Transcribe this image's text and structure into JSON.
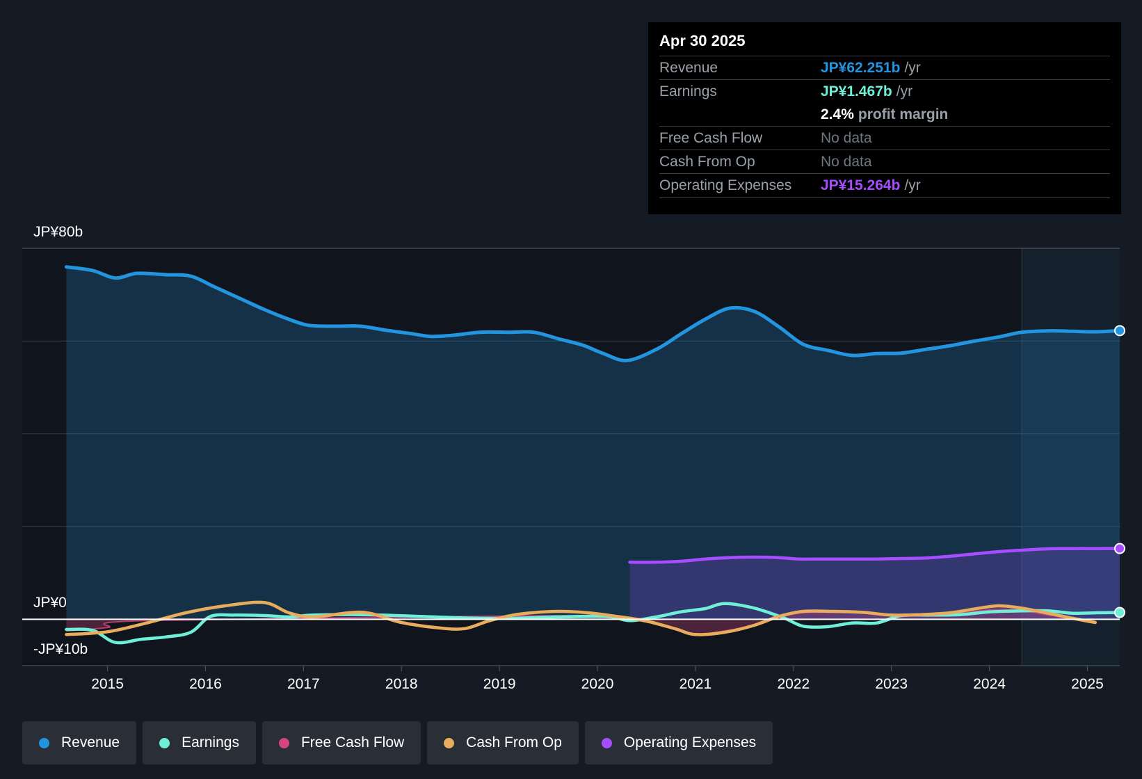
{
  "tooltip": {
    "date": "Apr 30 2025",
    "rows": {
      "revenue": {
        "label": "Revenue",
        "value": "JP¥62.251b",
        "unit": "/yr",
        "color": "#2394df"
      },
      "earnings": {
        "label": "Earnings",
        "value": "JP¥1.467b",
        "unit": "/yr",
        "color": "#6ef0d8"
      },
      "margin": {
        "value": "2.4%",
        "unit": "profit margin"
      },
      "fcf": {
        "label": "Free Cash Flow",
        "value": "No data"
      },
      "cfo": {
        "label": "Cash From Op",
        "value": "No data"
      },
      "opex": {
        "label": "Operating Expenses",
        "value": "JP¥15.264b",
        "unit": "/yr",
        "color": "#a64dff"
      }
    }
  },
  "legend": [
    {
      "label": "Revenue",
      "color": "#2394df"
    },
    {
      "label": "Earnings",
      "color": "#6ef0d8"
    },
    {
      "label": "Free Cash Flow",
      "color": "#d4447f"
    },
    {
      "label": "Cash From Op",
      "color": "#e9ac5c"
    },
    {
      "label": "Operating Expenses",
      "color": "#a64dff"
    }
  ],
  "chart_data": {
    "type": "area",
    "y_top_label": "JP¥80b",
    "y_zero_label": "JP¥0",
    "y_bottom_label": "-JP¥10b",
    "ylim": [
      -10,
      80
    ],
    "xlim": [
      2014.13,
      2025.33
    ],
    "x_ticks": [
      {
        "label": "2015",
        "value": 2015
      },
      {
        "label": "2016",
        "value": 2016
      },
      {
        "label": "2017",
        "value": 2017
      },
      {
        "label": "2018",
        "value": 2018
      },
      {
        "label": "2019",
        "value": 2019
      },
      {
        "label": "2020",
        "value": 2020
      },
      {
        "label": "2021",
        "value": 2021
      },
      {
        "label": "2022",
        "value": 2022
      },
      {
        "label": "2023",
        "value": 2023
      },
      {
        "label": "2024",
        "value": 2024
      },
      {
        "label": "2025",
        "value": 2025
      }
    ],
    "highlight_start": 2024.33,
    "series": [
      {
        "name": "Revenue",
        "color": "#2394df",
        "area": true,
        "x": [
          2014.58,
          2014.85,
          2015.08,
          2015.3,
          2015.6,
          2015.85,
          2016.1,
          2016.35,
          2016.6,
          2016.85,
          2017.05,
          2017.3,
          2017.58,
          2017.85,
          2018.1,
          2018.3,
          2018.55,
          2018.8,
          2019.1,
          2019.35,
          2019.6,
          2019.85,
          2020.05,
          2020.3,
          2020.6,
          2020.85,
          2021.1,
          2021.35,
          2021.6,
          2021.85,
          2022.1,
          2022.35,
          2022.6,
          2022.85,
          2023.1,
          2023.35,
          2023.6,
          2023.85,
          2024.1,
          2024.33,
          2024.6,
          2024.85,
          2025.1,
          2025.33
        ],
        "y": [
          76,
          75.2,
          73.6,
          74.6,
          74.3,
          74,
          71.6,
          69.2,
          66.8,
          64.7,
          63.4,
          63.2,
          63.2,
          62.3,
          61.6,
          61,
          61.3,
          61.9,
          61.9,
          61.9,
          60.5,
          59.1,
          57.4,
          55.8,
          58.2,
          61.5,
          64.7,
          67.1,
          66.4,
          63.1,
          59.3,
          58,
          56.9,
          57.3,
          57.4,
          58.2,
          59,
          60,
          60.9,
          61.9,
          62.2,
          62.1,
          62,
          62.25
        ]
      },
      {
        "name": "Operating Expenses",
        "color": "#a64dff",
        "area": true,
        "x": [
          2020.33,
          2020.6,
          2020.85,
          2021.1,
          2021.35,
          2021.6,
          2021.85,
          2022.05,
          2022.35,
          2022.6,
          2022.85,
          2023.1,
          2023.35,
          2023.6,
          2023.85,
          2024.1,
          2024.33,
          2024.6,
          2024.85,
          2025.1,
          2025.33
        ],
        "y": [
          12.3,
          12.3,
          12.5,
          13,
          13.3,
          13.4,
          13.3,
          13,
          13,
          13,
          13,
          13.1,
          13.2,
          13.6,
          14.1,
          14.6,
          14.9,
          15.2,
          15.25,
          15.25,
          15.26
        ]
      },
      {
        "name": "Free Cash Flow",
        "color": "#d4447f",
        "area": true,
        "x": [
          2014.58,
          2015.0,
          2015.4,
          2019.6,
          2019.9,
          2020.2,
          2020.5,
          2020.8,
          2021.0,
          2021.3,
          2021.6,
          2021.85,
          2022.1,
          2022.4,
          2022.7,
          2023.0,
          2023.3,
          2023.6,
          2023.9,
          2024.1,
          2024.33,
          2024.6,
          2024.85,
          2025.08
        ],
        "y": [
          -2.5,
          -1.8,
          -0.3,
          0.8,
          0.6,
          0.2,
          -0.6,
          -2.2,
          -3.3,
          -2.5,
          -1.2,
          0.6,
          1.4,
          1.5,
          1.4,
          1.0,
          0.9,
          1.1,
          1.8,
          2.2,
          1.9,
          0.9,
          0.1,
          -0.6
        ]
      },
      {
        "name": "Earnings",
        "color": "#6ef0d8",
        "area": false,
        "x": [
          2014.58,
          2014.85,
          2015.08,
          2015.35,
          2015.6,
          2015.85,
          2016.05,
          2016.3,
          2016.6,
          2016.85,
          2017.1,
          2017.6,
          2018.1,
          2018.6,
          2019.1,
          2019.6,
          2020.1,
          2020.33,
          2020.6,
          2020.85,
          2021.1,
          2021.3,
          2021.6,
          2021.9,
          2022.1,
          2022.35,
          2022.6,
          2022.85,
          2023.1,
          2023.4,
          2023.7,
          2024.0,
          2024.33,
          2024.6,
          2024.85,
          2025.1,
          2025.33
        ],
        "y": [
          -2.2,
          -2.4,
          -5.0,
          -4.3,
          -3.8,
          -2.8,
          0.6,
          0.9,
          0.8,
          0.5,
          0.9,
          1.0,
          0.7,
          0.3,
          0.2,
          0.5,
          0.6,
          -0.3,
          0.5,
          1.6,
          2.3,
          3.4,
          2.4,
          0.3,
          -1.5,
          -1.6,
          -0.8,
          -0.8,
          0.8,
          0.9,
          1.0,
          1.6,
          1.8,
          1.8,
          1.3,
          1.4,
          1.467
        ]
      },
      {
        "name": "Cash From Op",
        "color": "#e9ac5c",
        "area": false,
        "x": [
          2014.58,
          2015.0,
          2015.4,
          2015.8,
          2016.2,
          2016.6,
          2016.85,
          2017.1,
          2017.6,
          2018.0,
          2018.4,
          2018.65,
          2018.9,
          2019.2,
          2019.6,
          2019.9,
          2020.2,
          2020.5,
          2020.8,
          2021.0,
          2021.3,
          2021.6,
          2021.85,
          2022.1,
          2022.4,
          2022.7,
          2023.0,
          2023.3,
          2023.6,
          2023.9,
          2024.1,
          2024.33,
          2024.6,
          2024.85,
          2025.08
        ],
        "y": [
          -3.3,
          -2.7,
          -0.8,
          1.4,
          2.9,
          3.6,
          1.4,
          0.5,
          1.5,
          -0.7,
          -1.9,
          -2.0,
          -0.3,
          1.1,
          1.7,
          1.4,
          0.6,
          -0.4,
          -2.1,
          -3.3,
          -2.8,
          -1.3,
          0.6,
          1.7,
          1.7,
          1.5,
          0.9,
          1.0,
          1.4,
          2.4,
          2.9,
          2.4,
          1.3,
          0.2,
          -0.7
        ]
      }
    ]
  }
}
